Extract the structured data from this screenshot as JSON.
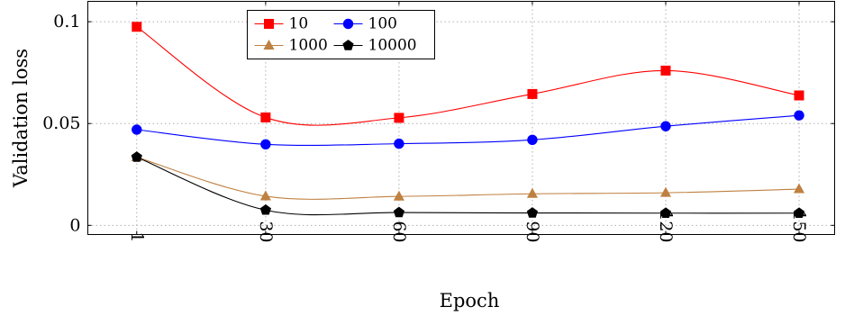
{
  "chart_data": {
    "type": "line",
    "xlabel": "Epoch",
    "ylabel": "Validation loss",
    "x": [
      1,
      30,
      60,
      90,
      120,
      150
    ],
    "x_tick_labels": [
      "1",
      "30",
      "60",
      "90",
      "120",
      "150"
    ],
    "xlim": [
      -10,
      158
    ],
    "ylim": [
      -0.0045,
      0.11
    ],
    "y_ticks": [
      0,
      0.05,
      0.1
    ],
    "y_tick_labels": [
      "0",
      "0.05",
      "0.1"
    ],
    "grid": true,
    "legend_position": "top-center",
    "series": [
      {
        "name": "10",
        "color": "#ff0000",
        "marker": "square",
        "values": [
          0.0975,
          0.053,
          0.0528,
          0.0645,
          0.076,
          0.0638
        ]
      },
      {
        "name": "100",
        "color": "#0000ff",
        "marker": "circle",
        "values": [
          0.047,
          0.0398,
          0.0401,
          0.042,
          0.0487,
          0.054
        ]
      },
      {
        "name": "1000",
        "color": "#bf8040",
        "marker": "triangle",
        "values": [
          0.0335,
          0.0143,
          0.0142,
          0.0155,
          0.016,
          0.0178
        ]
      },
      {
        "name": "10000",
        "color": "#000000",
        "marker": "pentagon",
        "values": [
          0.0335,
          0.0075,
          0.0063,
          0.0061,
          0.006,
          0.006
        ]
      }
    ]
  }
}
